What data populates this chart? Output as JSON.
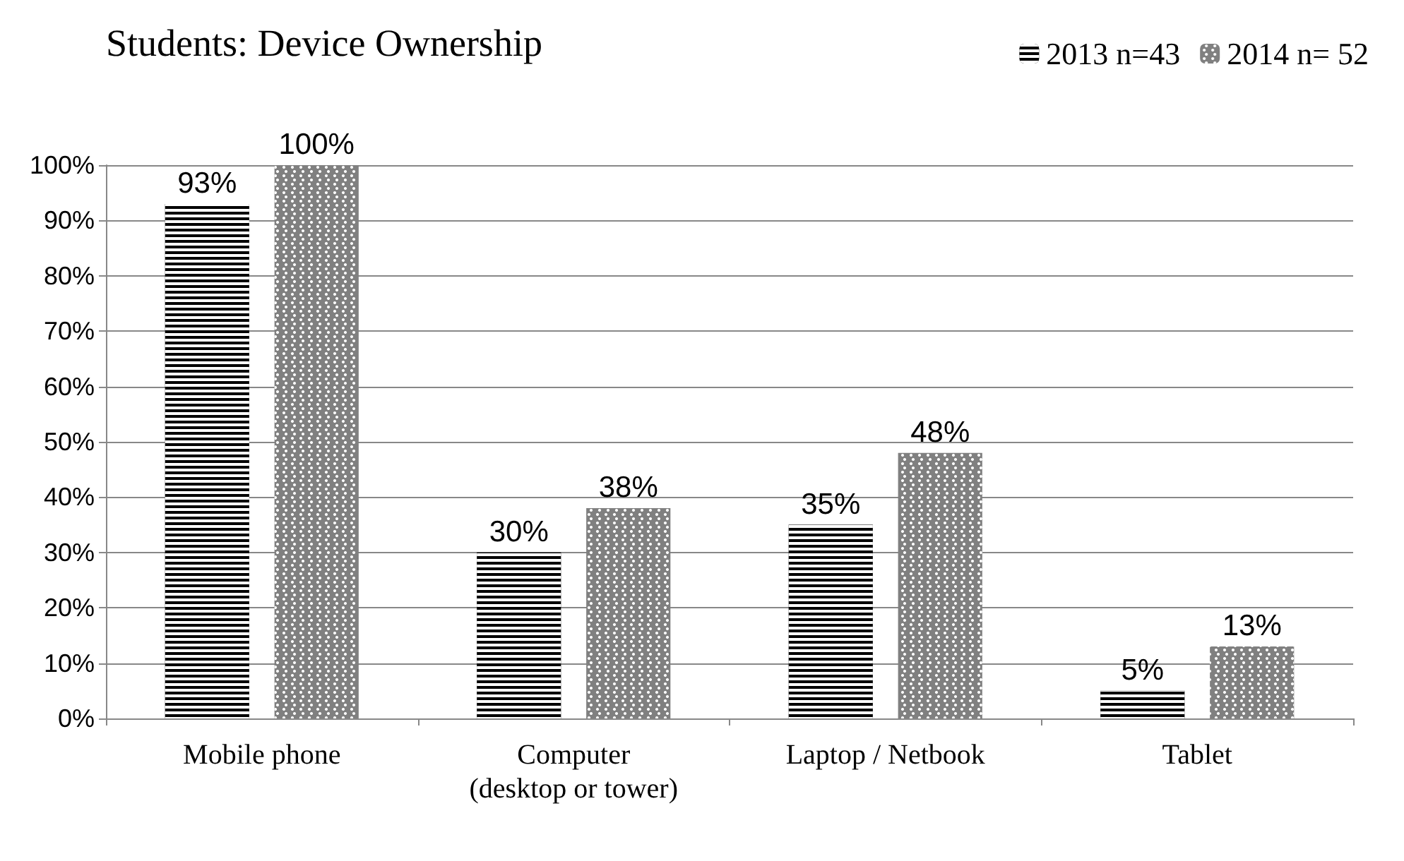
{
  "chart_data": {
    "type": "bar",
    "title": "Students: Device Ownership",
    "categories": [
      "Mobile phone",
      "Computer\n(desktop or tower)",
      "Laptop / Netbook",
      "Tablet"
    ],
    "series": [
      {
        "name": "2013 n=43",
        "color": "#000000",
        "values": [
          93,
          30,
          35,
          5
        ],
        "value_labels": [
          "93%",
          "30%",
          "35%",
          "5%"
        ]
      },
      {
        "name": "2014 n= 52",
        "color": "#808080",
        "values": [
          100,
          38,
          48,
          13
        ],
        "value_labels": [
          "100%",
          "38%",
          "48%",
          "13%"
        ]
      }
    ],
    "ylim": [
      0,
      100
    ],
    "yticks": [
      {
        "value": 0,
        "label": "0%"
      },
      {
        "value": 10,
        "label": "10%"
      },
      {
        "value": 20,
        "label": "20%"
      },
      {
        "value": 30,
        "label": "30%"
      },
      {
        "value": 40,
        "label": "40%"
      },
      {
        "value": 50,
        "label": "50%"
      },
      {
        "value": 60,
        "label": "60%"
      },
      {
        "value": 70,
        "label": "70%"
      },
      {
        "value": 80,
        "label": "80%"
      },
      {
        "value": 90,
        "label": "90%"
      },
      {
        "value": 100,
        "label": "100%"
      }
    ],
    "grid": "y",
    "legend": "top right"
  }
}
